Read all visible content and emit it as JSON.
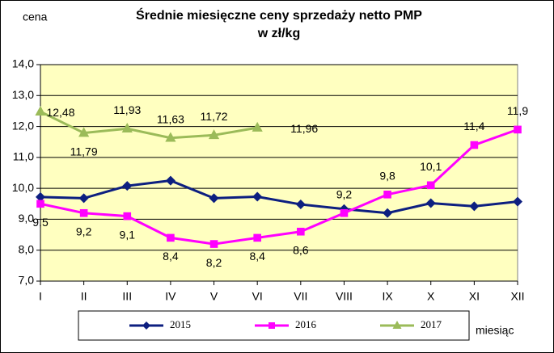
{
  "chart_data": {
    "type": "line",
    "title": "Średnie miesięczne ceny sprzedaży netto PMP",
    "subtitle": "w zł/kg",
    "y_label": "cena",
    "x_label": "miesiąc",
    "categories": [
      "I",
      "II",
      "III",
      "IV",
      "V",
      "VI",
      "VII",
      "VIII",
      "IX",
      "X",
      "XI",
      "XII"
    ],
    "ylim": [
      7,
      14
    ],
    "yticks": [
      {
        "value": 7,
        "label": "7,0"
      },
      {
        "value": 8,
        "label": "8,0"
      },
      {
        "value": 9,
        "label": "9,0"
      },
      {
        "value": 10,
        "label": "10,0"
      },
      {
        "value": 11,
        "label": "11,0"
      },
      {
        "value": 12,
        "label": "12,0"
      },
      {
        "value": 13,
        "label": "13,0"
      },
      {
        "value": 14,
        "label": "14,0"
      }
    ],
    "grid": true,
    "series": [
      {
        "name": "2015",
        "color": "#0d1f80",
        "marker": "diamond",
        "values": [
          9.72,
          9.68,
          10.08,
          10.25,
          9.68,
          9.73,
          9.48,
          9.33,
          9.2,
          9.52,
          9.42,
          9.57
        ]
      },
      {
        "name": "2016",
        "color": "#ff00ff",
        "marker": "square",
        "values": [
          9.5,
          9.2,
          9.1,
          8.4,
          8.2,
          8.4,
          8.6,
          9.2,
          9.8,
          10.1,
          11.4,
          11.9
        ],
        "value_labels": [
          "9,5",
          "9,2",
          "9,1",
          "8,4",
          "8,2",
          "8,4",
          "8,6",
          "9,2",
          "9,8",
          "10,1",
          "11,4",
          "11,9"
        ]
      },
      {
        "name": "2017",
        "color": "#9bbb59",
        "marker": "triangle",
        "values": [
          12.48,
          11.79,
          11.93,
          11.63,
          11.72,
          11.96,
          null,
          null,
          null,
          null,
          null,
          null
        ],
        "value_labels": [
          "12,48",
          "11,79",
          "11,93",
          "11,63",
          "11,72",
          "11,96",
          null,
          null,
          null,
          null,
          null,
          null
        ]
      }
    ]
  }
}
